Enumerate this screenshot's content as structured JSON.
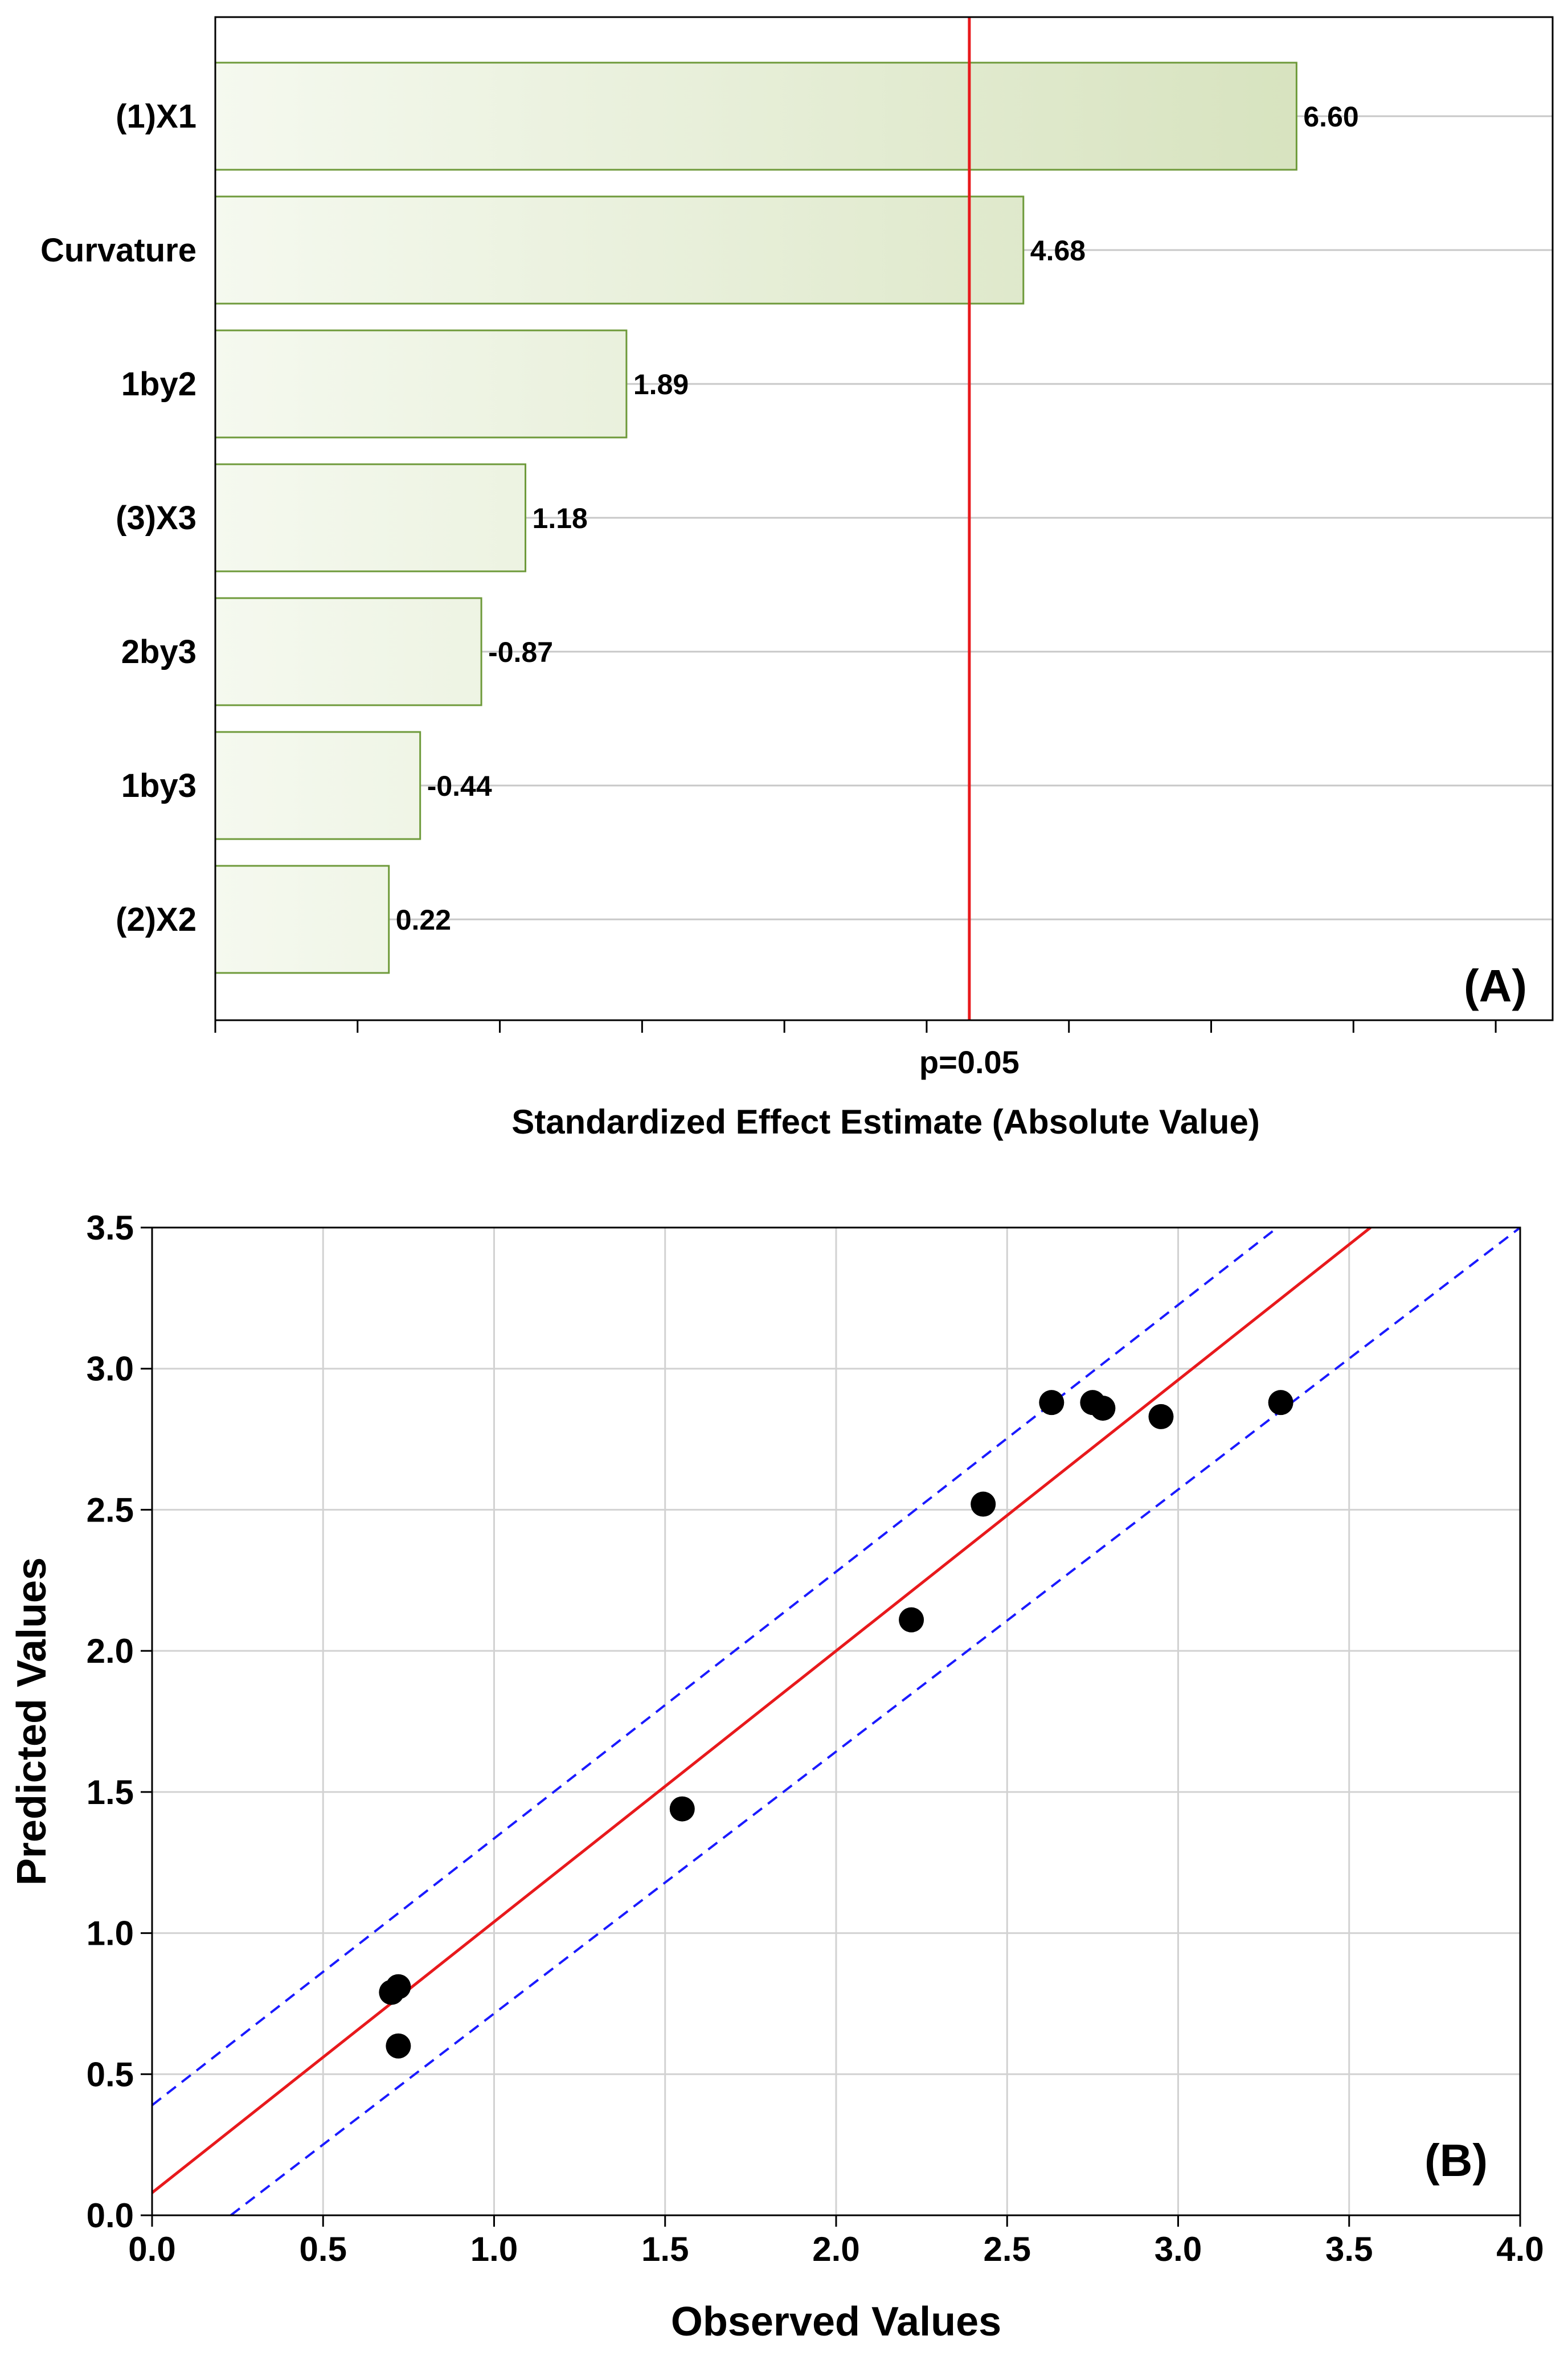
{
  "chart_data": [
    {
      "type": "bar",
      "orientation": "horizontal",
      "panel_label": "(A)",
      "title": "",
      "xlabel": "Standardized Effect Estimate (Absolute Value)",
      "ylabel": "",
      "categories": [
        "(1)X1",
        "Curvature",
        "1by2",
        "(3)X3",
        "2by3",
        "1by3",
        "(2)X2"
      ],
      "values": [
        6.6,
        4.68,
        1.89,
        1.18,
        -0.87,
        -0.44,
        0.22
      ],
      "value_labels": [
        "6.60",
        "4.68",
        "1.89",
        "1.18",
        "-0.87",
        "-0.44",
        "0.22"
      ],
      "reference_line": {
        "label": "p=0.05",
        "value": 4.3,
        "color": "#e8191c"
      },
      "xlim": [
        -1.0,
        8.4
      ],
      "grid": true,
      "bar_fill_light": "#f5f9ef",
      "bar_fill_dark": "#d6e2bd",
      "bar_stroke": "#6e9a3a"
    },
    {
      "type": "scatter",
      "panel_label": "(B)",
      "title": "",
      "xlabel": "Observed Values",
      "ylabel": "Predicted Values",
      "x": [
        0.7,
        0.72,
        0.72,
        1.55,
        2.22,
        2.43,
        2.63,
        2.75,
        2.78,
        2.95,
        3.3
      ],
      "y": [
        0.79,
        0.81,
        0.6,
        1.44,
        2.11,
        2.52,
        2.88,
        2.88,
        2.86,
        2.83,
        2.88
      ],
      "xlim": [
        0.0,
        4.0
      ],
      "ylim": [
        0.0,
        3.5
      ],
      "xticks": [
        "0.0",
        "0.5",
        "1.0",
        "1.5",
        "2.0",
        "2.5",
        "3.0",
        "3.5",
        "4.0"
      ],
      "yticks": [
        "0.0",
        "0.5",
        "1.0",
        "1.5",
        "2.0",
        "2.5",
        "3.0",
        "3.5"
      ],
      "grid": true,
      "fit_line": {
        "intercept": 0.08,
        "slope": 0.96,
        "color": "#e8191c"
      },
      "confidence_bands": {
        "upper": {
          "x": [
            0.0,
            3.29
          ],
          "y": [
            0.39,
            3.5
          ]
        },
        "lower": {
          "x": [
            0.23,
            4.0
          ],
          "y": [
            0.0,
            3.5
          ]
        },
        "color": "#1a1aff"
      },
      "point_color": "#000000"
    }
  ]
}
